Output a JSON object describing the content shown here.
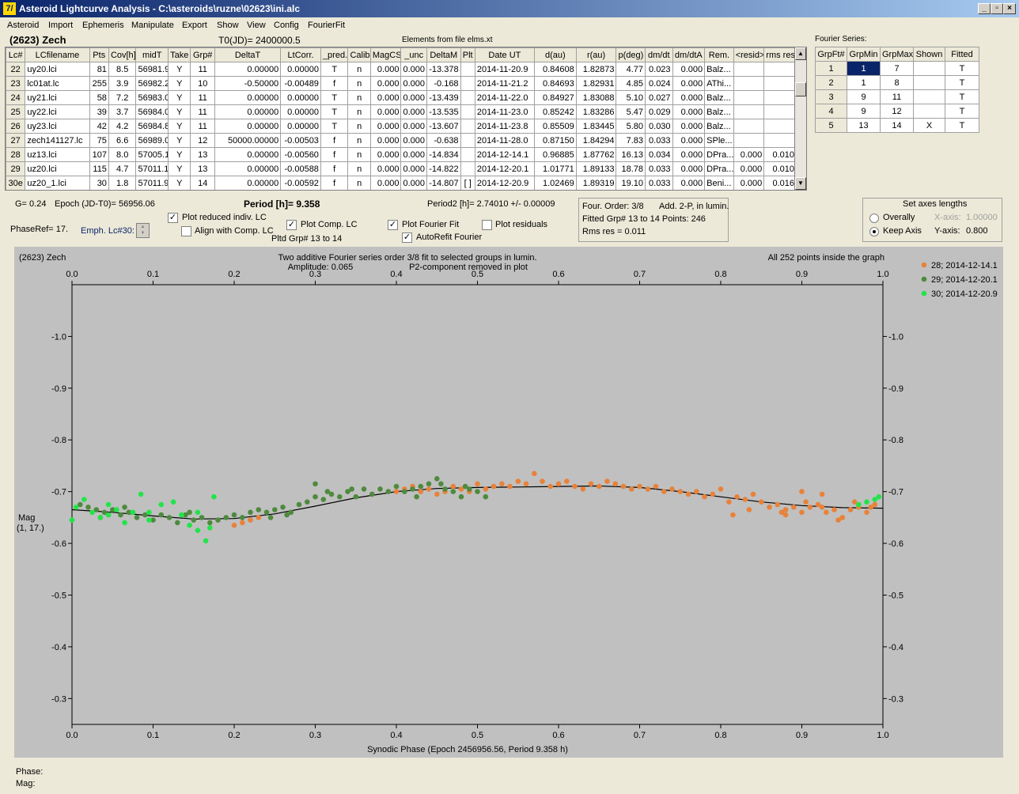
{
  "window": {
    "title": "Asteroid Lightcurve Analysis - C:\\asteroids\\ruzne\\02623\\ini.alc",
    "app_icon": "7/",
    "min_label": "_",
    "restore_label": "▫",
    "close_label": "×"
  },
  "menu": [
    "Asteroid",
    "Import",
    "Ephemeris",
    "Manipulate",
    "Export",
    "Show",
    "View",
    "Config",
    "FourierFit"
  ],
  "header": {
    "asteroid": "(2623) Zech",
    "t0": "T0(JD)= 2400000.5",
    "elements": "Elements from file elms.xt",
    "fourier_label": "Fourier Series:"
  },
  "lc_table": {
    "columns": [
      "Lc#",
      "LCfilename",
      "Pts",
      "Cov[h]",
      "midT",
      "Take",
      "Grp#",
      "DeltaT",
      "LtCorr.",
      "_pred.",
      "Calib.",
      "MagCS",
      "_unc",
      "DeltaM",
      "Plt",
      "Date UT",
      "d(au)",
      "r(au)",
      "p(deg)",
      "dm/dt",
      "dm/dtA",
      "Rem.",
      "<resid>",
      "rms res"
    ],
    "rows": [
      [
        "22",
        "uy20.lci",
        "81",
        "8.5",
        "56981.9",
        "Y",
        "11",
        "0.00000",
        "0.00000",
        "T",
        "n",
        "0.000",
        "0.000",
        "-13.378",
        "",
        "2014-11-20.9",
        "0.84608",
        "1.82873",
        "4.77",
        "0.023",
        "0.000",
        "Balz...",
        "",
        ""
      ],
      [
        "23",
        "lc01at.lc",
        "255",
        "3.9",
        "56982.2",
        "Y",
        "10",
        "-0.50000",
        "-0.00489",
        "f",
        "n",
        "0.000",
        "0.000",
        "-0.168",
        "",
        "2014-11-21.2",
        "0.84693",
        "1.82931",
        "4.85",
        "0.024",
        "0.000",
        "AThi...",
        "",
        ""
      ],
      [
        "24",
        "uy21.lci",
        "58",
        "7.2",
        "56983.0",
        "Y",
        "11",
        "0.00000",
        "0.00000",
        "T",
        "n",
        "0.000",
        "0.000",
        "-13.439",
        "",
        "2014-11-22.0",
        "0.84927",
        "1.83088",
        "5.10",
        "0.027",
        "0.000",
        "Balz...",
        "",
        ""
      ],
      [
        "25",
        "uy22.lci",
        "39",
        "3.7",
        "56984.0",
        "Y",
        "11",
        "0.00000",
        "0.00000",
        "T",
        "n",
        "0.000",
        "0.000",
        "-13.535",
        "",
        "2014-11-23.0",
        "0.85242",
        "1.83286",
        "5.47",
        "0.029",
        "0.000",
        "Balz...",
        "",
        ""
      ],
      [
        "26",
        "uy23.lci",
        "42",
        "4.2",
        "56984.8",
        "Y",
        "11",
        "0.00000",
        "0.00000",
        "T",
        "n",
        "0.000",
        "0.000",
        "-13.607",
        "",
        "2014-11-23.8",
        "0.85509",
        "1.83445",
        "5.80",
        "0.030",
        "0.000",
        "Balz...",
        "",
        ""
      ],
      [
        "27",
        "zech141127.lc",
        "75",
        "6.6",
        "56989.0",
        "Y",
        "12",
        "50000.00000",
        "-0.00503",
        "f",
        "n",
        "0.000",
        "0.000",
        "-0.638",
        "",
        "2014-11-28.0",
        "0.87150",
        "1.84294",
        "7.83",
        "0.033",
        "0.000",
        "SPle...",
        "",
        ""
      ],
      [
        "28",
        "uz13.lci",
        "107",
        "8.0",
        "57005.1",
        "Y",
        "13",
        "0.00000",
        "-0.00560",
        "f",
        "n",
        "0.000",
        "0.000",
        "-14.834",
        "",
        "2014-12-14.1",
        "0.96885",
        "1.87762",
        "16.13",
        "0.034",
        "0.000",
        "DPra...",
        "0.000",
        "0.010"
      ],
      [
        "29",
        "uz20.lci",
        "115",
        "4.7",
        "57011.1",
        "Y",
        "13",
        "0.00000",
        "-0.00588",
        "f",
        "n",
        "0.000",
        "0.000",
        "-14.822",
        "",
        "2014-12-20.1",
        "1.01771",
        "1.89133",
        "18.78",
        "0.033",
        "0.000",
        "DPra...",
        "0.000",
        "0.010"
      ],
      [
        "30e",
        "uz20_1.lci",
        "30",
        "1.8",
        "57011.9",
        "Y",
        "14",
        "0.00000",
        "-0.00592",
        "f",
        "n",
        "0.000",
        "0.000",
        "-14.807",
        "[ ]",
        "2014-12-20.9",
        "1.02469",
        "1.89319",
        "19.10",
        "0.033",
        "0.000",
        "Beni...",
        "0.000",
        "0.016"
      ]
    ]
  },
  "fourier_table": {
    "columns": [
      "GrpFt#",
      "GrpMin",
      "GrpMax",
      "Shown",
      "Fitted"
    ],
    "rows": [
      [
        "1",
        "1",
        "7",
        "",
        "T"
      ],
      [
        "2",
        "1",
        "8",
        "",
        "T"
      ],
      [
        "3",
        "9",
        "11",
        "",
        "T"
      ],
      [
        "4",
        "9",
        "12",
        "",
        "T"
      ],
      [
        "5",
        "13",
        "14",
        "X",
        "T"
      ]
    ]
  },
  "controls": {
    "g": "G= 0.24",
    "epoch": "Epoch (JD-T0)= 56956.06",
    "period": "Period [h]= 9.358",
    "period2": "Period2 [h]= 2.74010 +/- 0.00009",
    "phaseref": "PhaseRef= 17.",
    "emph": "Emph. Lc#30:",
    "plot_reduced": "Plot reduced indiv. LC",
    "align_comp": "Align with Comp. LC",
    "plot_comp": "Plot Comp. LC",
    "pltd_grp": "Pltd Grp#  13 to   14",
    "plot_fourier": "Plot Fourier Fit",
    "autorefit": "AutoRefit Fourier",
    "plot_residuals": "Plot residuals",
    "check_mark": "✓",
    "four_order": "Four. Order:  3/8",
    "add_2p": "Add. 2-P, in lumin.",
    "fitted_grp": "Fitted Grp# 13 to 14 Points: 246",
    "rms_res": "Rms res     = 0.011",
    "axes_title": "Set axes lengths",
    "overally": "Overally",
    "keep_axis": "Keep Axis",
    "x_axis_label": "X-axis:",
    "x_axis_value": "1.00000",
    "y_axis_label": "Y-axis:",
    "y_axis_value": "0.800"
  },
  "plot": {
    "name": "(2623) Zech",
    "subtitle1": "Two additive Fourier series order 3/8 fit to selected groups in lumin.",
    "amplitude": "Amplitude: 0.065",
    "p2": "P2-component removed in plot",
    "points_info": "All 252 points inside the graph",
    "xlabel": "Synodic Phase (Epoch 2456956.56, Period 9.358 h)",
    "ylabel1": "Mag",
    "ylabel2": "(1, 17.)"
  },
  "status": {
    "phase": "Phase:",
    "mag": "Mag:"
  },
  "chart_data": {
    "type": "scatter",
    "xlim": [
      0.0,
      1.0
    ],
    "ylim": [
      -0.25,
      -1.1
    ],
    "xticks": [
      "0.0",
      "0.1",
      "0.2",
      "0.3",
      "0.4",
      "0.5",
      "0.6",
      "0.7",
      "0.8",
      "0.9",
      "1.0"
    ],
    "yticks": [
      "-1.0",
      "-0.9",
      "-0.8",
      "-0.7",
      "-0.6",
      "-0.5",
      "-0.4",
      "-0.3"
    ],
    "grid": false,
    "legend_position": "top-right",
    "series": [
      {
        "name": "28; 2014-12-14.1",
        "color": "#e8823a",
        "points": [
          [
            0.2,
            -0.635
          ],
          [
            0.21,
            -0.64
          ],
          [
            0.22,
            -0.645
          ],
          [
            0.23,
            -0.65
          ],
          [
            0.4,
            -0.7
          ],
          [
            0.41,
            -0.705
          ],
          [
            0.42,
            -0.71
          ],
          [
            0.43,
            -0.7
          ],
          [
            0.44,
            -0.705
          ],
          [
            0.45,
            -0.695
          ],
          [
            0.46,
            -0.7
          ],
          [
            0.47,
            -0.71
          ],
          [
            0.48,
            -0.705
          ],
          [
            0.49,
            -0.7
          ],
          [
            0.5,
            -0.715
          ],
          [
            0.51,
            -0.705
          ],
          [
            0.52,
            -0.71
          ],
          [
            0.53,
            -0.715
          ],
          [
            0.54,
            -0.71
          ],
          [
            0.55,
            -0.72
          ],
          [
            0.56,
            -0.715
          ],
          [
            0.57,
            -0.735
          ],
          [
            0.58,
            -0.72
          ],
          [
            0.59,
            -0.71
          ],
          [
            0.6,
            -0.715
          ],
          [
            0.61,
            -0.72
          ],
          [
            0.62,
            -0.71
          ],
          [
            0.63,
            -0.705
          ],
          [
            0.64,
            -0.715
          ],
          [
            0.65,
            -0.71
          ],
          [
            0.66,
            -0.72
          ],
          [
            0.67,
            -0.715
          ],
          [
            0.68,
            -0.71
          ],
          [
            0.69,
            -0.705
          ],
          [
            0.7,
            -0.71
          ],
          [
            0.71,
            -0.705
          ],
          [
            0.72,
            -0.71
          ],
          [
            0.73,
            -0.7
          ],
          [
            0.74,
            -0.705
          ],
          [
            0.75,
            -0.7
          ],
          [
            0.76,
            -0.695
          ],
          [
            0.77,
            -0.7
          ],
          [
            0.78,
            -0.69
          ],
          [
            0.79,
            -0.695
          ],
          [
            0.8,
            -0.705
          ],
          [
            0.81,
            -0.68
          ],
          [
            0.82,
            -0.69
          ],
          [
            0.83,
            -0.685
          ],
          [
            0.84,
            -0.695
          ],
          [
            0.85,
            -0.68
          ],
          [
            0.86,
            -0.67
          ],
          [
            0.87,
            -0.675
          ],
          [
            0.88,
            -0.665
          ],
          [
            0.89,
            -0.67
          ],
          [
            0.9,
            -0.66
          ],
          [
            0.91,
            -0.67
          ],
          [
            0.92,
            -0.675
          ],
          [
            0.93,
            -0.66
          ],
          [
            0.94,
            -0.665
          ],
          [
            0.95,
            -0.65
          ],
          [
            0.96,
            -0.665
          ],
          [
            0.97,
            -0.67
          ],
          [
            0.98,
            -0.66
          ],
          [
            0.99,
            -0.675
          ],
          [
            0.815,
            -0.655
          ],
          [
            0.835,
            -0.665
          ],
          [
            0.875,
            -0.66
          ],
          [
            0.905,
            -0.68
          ],
          [
            0.925,
            -0.67
          ],
          [
            0.945,
            -0.645
          ],
          [
            0.965,
            -0.68
          ],
          [
            0.985,
            -0.67
          ],
          [
            0.88,
            -0.655
          ],
          [
            0.9,
            -0.7
          ],
          [
            0.925,
            -0.695
          ]
        ]
      },
      {
        "name": "29; 2014-12-20.1",
        "color": "#4e8a3e",
        "points": [
          [
            0.01,
            -0.675
          ],
          [
            0.02,
            -0.67
          ],
          [
            0.03,
            -0.665
          ],
          [
            0.04,
            -0.66
          ],
          [
            0.05,
            -0.665
          ],
          [
            0.06,
            -0.655
          ],
          [
            0.07,
            -0.66
          ],
          [
            0.08,
            -0.65
          ],
          [
            0.09,
            -0.655
          ],
          [
            0.1,
            -0.645
          ],
          [
            0.11,
            -0.655
          ],
          [
            0.12,
            -0.65
          ],
          [
            0.13,
            -0.64
          ],
          [
            0.14,
            -0.655
          ],
          [
            0.15,
            -0.645
          ],
          [
            0.16,
            -0.65
          ],
          [
            0.17,
            -0.64
          ],
          [
            0.18,
            -0.645
          ],
          [
            0.19,
            -0.65
          ],
          [
            0.2,
            -0.655
          ],
          [
            0.21,
            -0.65
          ],
          [
            0.22,
            -0.66
          ],
          [
            0.23,
            -0.665
          ],
          [
            0.24,
            -0.66
          ],
          [
            0.25,
            -0.665
          ],
          [
            0.26,
            -0.67
          ],
          [
            0.27,
            -0.66
          ],
          [
            0.28,
            -0.675
          ],
          [
            0.29,
            -0.68
          ],
          [
            0.3,
            -0.69
          ],
          [
            0.31,
            -0.685
          ],
          [
            0.32,
            -0.695
          ],
          [
            0.33,
            -0.69
          ],
          [
            0.34,
            -0.7
          ],
          [
            0.35,
            -0.69
          ],
          [
            0.36,
            -0.705
          ],
          [
            0.37,
            -0.695
          ],
          [
            0.38,
            -0.705
          ],
          [
            0.39,
            -0.7
          ],
          [
            0.4,
            -0.71
          ],
          [
            0.41,
            -0.7
          ],
          [
            0.42,
            -0.705
          ],
          [
            0.43,
            -0.71
          ],
          [
            0.44,
            -0.715
          ],
          [
            0.45,
            -0.725
          ],
          [
            0.46,
            -0.705
          ],
          [
            0.47,
            -0.7
          ],
          [
            0.48,
            -0.69
          ],
          [
            0.49,
            -0.705
          ],
          [
            0.5,
            -0.7
          ],
          [
            0.51,
            -0.69
          ],
          [
            0.3,
            -0.715
          ],
          [
            0.035,
            -0.65
          ],
          [
            0.065,
            -0.67
          ],
          [
            0.145,
            -0.66
          ],
          [
            0.245,
            -0.65
          ],
          [
            0.265,
            -0.655
          ],
          [
            0.315,
            -0.7
          ],
          [
            0.345,
            -0.705
          ],
          [
            0.425,
            -0.69
          ],
          [
            0.455,
            -0.715
          ],
          [
            0.485,
            -0.71
          ]
        ]
      },
      {
        "name": "30; 2014-12-20.9",
        "color": "#22e44a",
        "points": [
          [
            0.0,
            -0.645
          ],
          [
            0.005,
            -0.67
          ],
          [
            0.015,
            -0.685
          ],
          [
            0.025,
            -0.66
          ],
          [
            0.035,
            -0.65
          ],
          [
            0.045,
            -0.675
          ],
          [
            0.055,
            -0.665
          ],
          [
            0.065,
            -0.64
          ],
          [
            0.075,
            -0.66
          ],
          [
            0.085,
            -0.695
          ],
          [
            0.095,
            -0.645
          ],
          [
            0.11,
            -0.675
          ],
          [
            0.125,
            -0.68
          ],
          [
            0.135,
            -0.655
          ],
          [
            0.145,
            -0.635
          ],
          [
            0.155,
            -0.625
          ],
          [
            0.165,
            -0.605
          ],
          [
            0.17,
            -0.63
          ],
          [
            0.155,
            -0.66
          ],
          [
            0.175,
            -0.69
          ],
          [
            0.045,
            -0.655
          ],
          [
            0.095,
            -0.66
          ],
          [
            0.99,
            -0.685
          ],
          [
            0.995,
            -0.69
          ],
          [
            0.98,
            -0.68
          ],
          [
            0.97,
            -0.675
          ]
        ]
      },
      {
        "name": "Fourier fit",
        "color": "#000000",
        "points": [
          [
            0.0,
            -0.665
          ],
          [
            0.05,
            -0.66
          ],
          [
            0.1,
            -0.653
          ],
          [
            0.15,
            -0.647
          ],
          [
            0.2,
            -0.648
          ],
          [
            0.25,
            -0.657
          ],
          [
            0.3,
            -0.672
          ],
          [
            0.35,
            -0.688
          ],
          [
            0.4,
            -0.7
          ],
          [
            0.45,
            -0.706
          ],
          [
            0.5,
            -0.708
          ],
          [
            0.55,
            -0.709
          ],
          [
            0.6,
            -0.71
          ],
          [
            0.65,
            -0.711
          ],
          [
            0.7,
            -0.708
          ],
          [
            0.75,
            -0.7
          ],
          [
            0.8,
            -0.69
          ],
          [
            0.85,
            -0.68
          ],
          [
            0.9,
            -0.673
          ],
          [
            0.95,
            -0.669
          ],
          [
            1.0,
            -0.668
          ]
        ]
      }
    ]
  }
}
